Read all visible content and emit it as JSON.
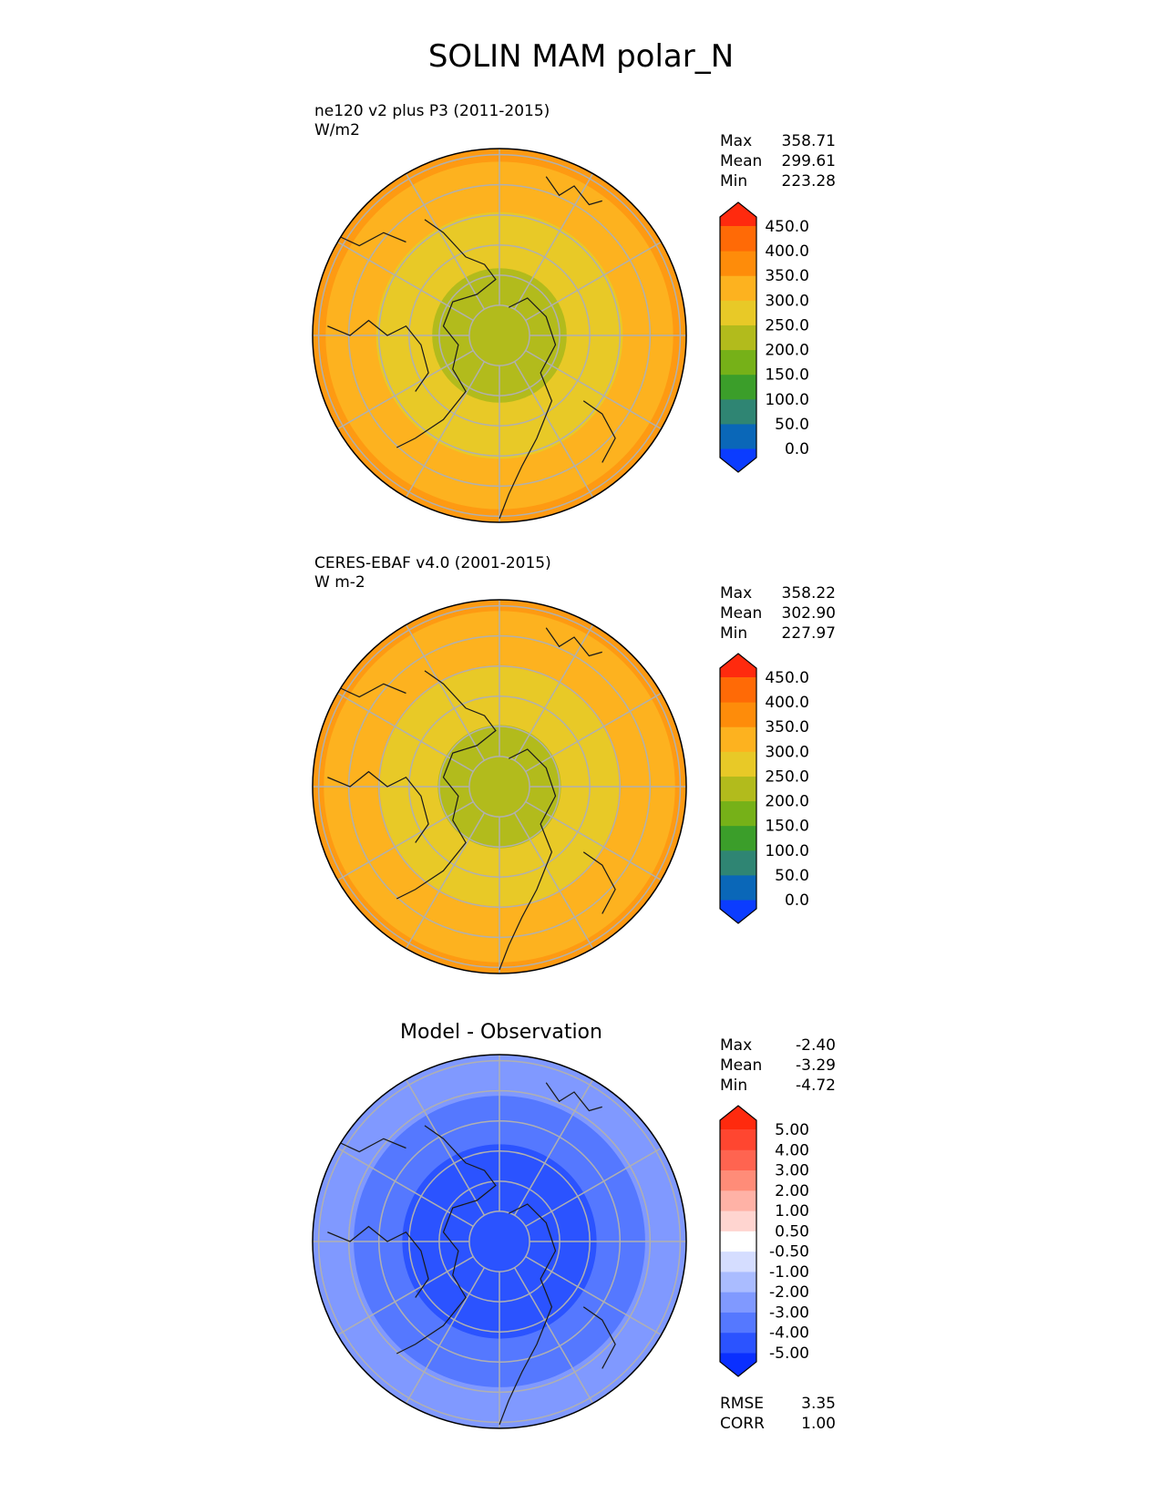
{
  "title": "SOLIN MAM polar_N",
  "panels": [
    {
      "name": "model",
      "title_line1": "ne120 v2 plus P3 (2011-2015)",
      "title_line2": "W/m2",
      "stats": [
        {
          "label": "Max",
          "value": "358.71"
        },
        {
          "label": "Mean",
          "value": "299.61"
        },
        {
          "label": "Min",
          "value": "223.28"
        }
      ],
      "colorbar": {
        "ticks": [
          "0.0",
          "50.0",
          "100.0",
          "150.0",
          "200.0",
          "250.0",
          "300.0",
          "350.0",
          "400.0",
          "450.0"
        ],
        "colors": [
          "#0b3cff",
          "#0a67b8",
          "#2f8573",
          "#3b9e2a",
          "#76b118",
          "#b2bb1c",
          "#e8c927",
          "#fdb21f",
          "#fe8c0a",
          "#ff6a06",
          "#ff2a0e"
        ]
      },
      "map": {
        "rings": [
          {
            "outer_frac": 1.0,
            "color": "#fe9a12"
          },
          {
            "outer_frac": 0.93,
            "color": "#fdb21f"
          },
          {
            "outer_frac": 0.66,
            "color": "#e8c927"
          },
          {
            "outer_frac": 0.36,
            "color": "#b2bb1c"
          }
        ]
      }
    },
    {
      "name": "obs",
      "title_line1": "CERES-EBAF v4.0 (2001-2015)",
      "title_line2": "W m-2",
      "stats": [
        {
          "label": "Max",
          "value": "358.22"
        },
        {
          "label": "Mean",
          "value": "302.90"
        },
        {
          "label": "Min",
          "value": "227.97"
        }
      ],
      "colorbar": {
        "ticks": [
          "0.0",
          "50.0",
          "100.0",
          "150.0",
          "200.0",
          "250.0",
          "300.0",
          "350.0",
          "400.0",
          "450.0"
        ],
        "colors": [
          "#0b3cff",
          "#0a67b8",
          "#2f8573",
          "#3b9e2a",
          "#76b118",
          "#b2bb1c",
          "#e8c927",
          "#fdb21f",
          "#fe8c0a",
          "#ff6a06",
          "#ff2a0e"
        ]
      },
      "map": {
        "rings": [
          {
            "outer_frac": 1.0,
            "color": "#fe9a12"
          },
          {
            "outer_frac": 0.94,
            "color": "#fdb21f"
          },
          {
            "outer_frac": 0.64,
            "color": "#e8c927"
          },
          {
            "outer_frac": 0.33,
            "color": "#b2bb1c"
          }
        ]
      }
    },
    {
      "name": "diff",
      "center_title": "Model - Observation",
      "stats": [
        {
          "label": "Max",
          "value": "-2.40"
        },
        {
          "label": "Mean",
          "value": "-3.29"
        },
        {
          "label": "Min",
          "value": "-4.72"
        }
      ],
      "stats_bottom": [
        {
          "label": "RMSE",
          "value": "3.35"
        },
        {
          "label": "CORR",
          "value": "1.00"
        }
      ],
      "colorbar": {
        "ticks": [
          "-5.00",
          "-4.00",
          "-3.00",
          "-2.00",
          "-1.00",
          "-0.50",
          "0.50",
          "1.00",
          "2.00",
          "3.00",
          "4.00",
          "5.00"
        ],
        "colors": [
          "#0a2fff",
          "#2b53ff",
          "#5578ff",
          "#8099ff",
          "#aabcff",
          "#d5ddff",
          "#ffffff",
          "#ffd5d0",
          "#ffb2a6",
          "#ff8c78",
          "#ff6450",
          "#ff4630",
          "#ff2a0e"
        ]
      },
      "map": {
        "rings": [
          {
            "outer_frac": 1.0,
            "color": "#8099ff"
          },
          {
            "outer_frac": 0.78,
            "color": "#5578ff"
          },
          {
            "outer_frac": 0.52,
            "color": "#2b53ff"
          }
        ]
      }
    }
  ]
}
